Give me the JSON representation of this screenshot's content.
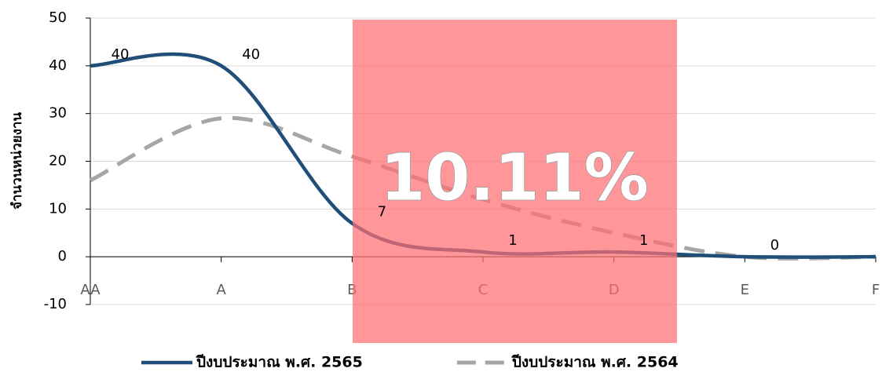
{
  "chart_data": {
    "type": "line",
    "y_label": "จำนวนหน่วยงาน",
    "categories": [
      "AA",
      "A",
      "B",
      "C",
      "D",
      "E",
      "F"
    ],
    "series": [
      {
        "name": "ปีงบประมาณ พ.ศ. 2565",
        "color": "#1f4e79",
        "style": "solid",
        "values": [
          40,
          40,
          7,
          1,
          1,
          0,
          0
        ],
        "data_labels": true
      },
      {
        "name": "ปีงบประมาณ พ.ศ. 2564",
        "color": "#a6a6a6",
        "style": "dashed",
        "values": [
          16,
          29,
          21,
          12,
          5,
          0,
          0
        ],
        "data_labels": false
      }
    ],
    "ylim": [
      -10,
      50
    ],
    "yticks": [
      -10,
      0,
      10,
      20,
      30,
      40,
      50
    ],
    "grid": true,
    "smooth": true,
    "legend": "bottom",
    "annotation": "10.11%"
  }
}
